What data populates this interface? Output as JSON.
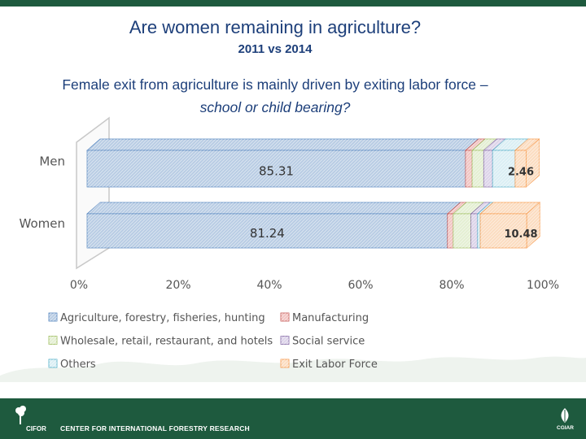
{
  "header": {
    "title": "Are women remaining in agriculture?",
    "subtitle": "2011 vs 2014"
  },
  "heading": {
    "line1": "Female exit from agriculture is mainly driven by exiting labor force –",
    "line2": "school or child bearing?"
  },
  "chart_data": {
    "type": "bar",
    "orientation": "horizontal",
    "stacked": true,
    "three_d": true,
    "categories": [
      "Men",
      "Women"
    ],
    "x_tick_labels": [
      "0%",
      "20%",
      "40%",
      "60%",
      "80%",
      "100%"
    ],
    "xlim": [
      0,
      100
    ],
    "legend_position": "bottom",
    "series": [
      {
        "name": "Agriculture, forestry, fisheries, hunting",
        "values": [
          85.31,
          81.24
        ],
        "color": "#b8cce4",
        "stroke": "#4f81bd"
      },
      {
        "name": "Manufacturing",
        "values": [
          1.5,
          1.3
        ],
        "color": "#f2c4c2",
        "stroke": "#c0504d"
      },
      {
        "name": "Wholesale, retail, restaurant, and hotels",
        "values": [
          2.6,
          4.0
        ],
        "color": "#e4efd2",
        "stroke": "#9bbb59"
      },
      {
        "name": "Social service",
        "values": [
          2.0,
          1.5
        ],
        "color": "#dcd3e9",
        "stroke": "#8064a2"
      },
      {
        "name": "Others",
        "values": [
          5.1,
          0.6
        ],
        "color": "#daeef4",
        "stroke": "#4bacc6"
      },
      {
        "name": "Exit Labor Force",
        "values": [
          2.46,
          10.48
        ],
        "color": "#fbdcc0",
        "stroke": "#f79646"
      }
    ],
    "data_labels": [
      {
        "category": "Men",
        "series": "Agriculture, forestry, fisheries, hunting",
        "text": "85.31"
      },
      {
        "category": "Men",
        "series": "Exit Labor Force",
        "text": "2.46"
      },
      {
        "category": "Women",
        "series": "Agriculture, forestry, fisheries, hunting",
        "text": "81.24"
      },
      {
        "category": "Women",
        "series": "Exit Labor Force",
        "text": "10.48"
      }
    ]
  },
  "footer": {
    "logo_text": "CIFOR",
    "organization": "CENTER FOR INTERNATIONAL FORESTRY RESEARCH",
    "partner_logo_text": "CGIAR"
  }
}
